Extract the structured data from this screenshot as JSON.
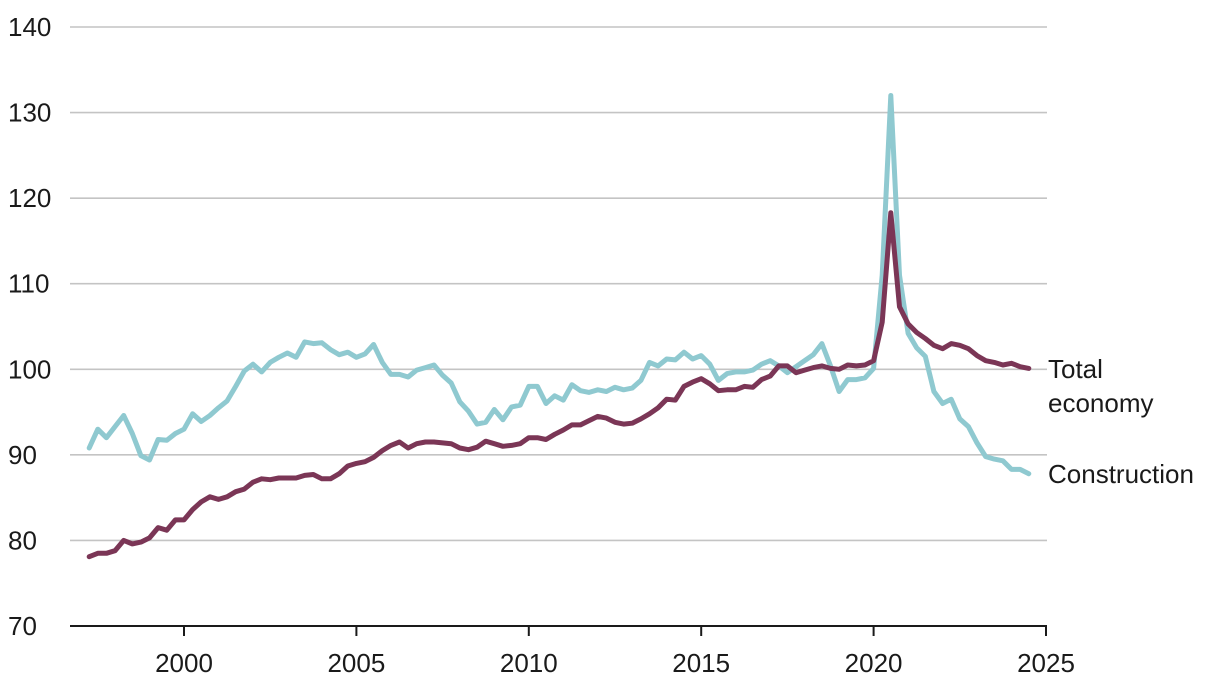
{
  "chart_data": {
    "type": "line",
    "title": "",
    "xlabel": "",
    "ylabel": "",
    "xlim": [
      1996.5,
      2025
    ],
    "ylim": [
      70,
      140
    ],
    "grid": true,
    "x_ticks": [
      "2000",
      "2005",
      "2010",
      "2015",
      "2020",
      "2025"
    ],
    "y_ticks": [
      "70",
      "80",
      "90",
      "100",
      "110",
      "120",
      "130",
      "140"
    ],
    "colors": {
      "Total economy": "#7b3656",
      "Construction": "#8fc9d0"
    },
    "series": [
      {
        "name": "Total economy",
        "label_lines": [
          "Total",
          "economy"
        ],
        "x": [
          1997.25,
          1997.5,
          1997.75,
          1998,
          1998.25,
          1998.5,
          1998.75,
          1999,
          1999.25,
          1999.5,
          1999.75,
          2000,
          2000.25,
          2000.5,
          2000.75,
          2001,
          2001.25,
          2001.5,
          2001.75,
          2002,
          2002.25,
          2002.5,
          2002.75,
          2003,
          2003.25,
          2003.5,
          2003.75,
          2004,
          2004.25,
          2004.5,
          2004.75,
          2005,
          2005.25,
          2005.5,
          2005.75,
          2006,
          2006.25,
          2006.5,
          2006.75,
          2007,
          2007.25,
          2007.5,
          2007.75,
          2008,
          2008.25,
          2008.5,
          2008.75,
          2009,
          2009.25,
          2009.5,
          2009.75,
          2010,
          2010.25,
          2010.5,
          2010.75,
          2011,
          2011.25,
          2011.5,
          2011.75,
          2012,
          2012.25,
          2012.5,
          2012.75,
          2013,
          2013.25,
          2013.5,
          2013.75,
          2014,
          2014.25,
          2014.5,
          2014.75,
          2015,
          2015.25,
          2015.5,
          2015.75,
          2016,
          2016.25,
          2016.5,
          2016.75,
          2017,
          2017.25,
          2017.5,
          2017.75,
          2018,
          2018.25,
          2018.5,
          2018.75,
          2019,
          2019.25,
          2019.5,
          2019.75,
          2020,
          2020.25,
          2020.5,
          2020.75,
          2021,
          2021.25,
          2021.5,
          2021.75,
          2022,
          2022.25,
          2022.5,
          2022.75,
          2023,
          2023.25,
          2023.5,
          2023.75,
          2024,
          2024.25,
          2024.5
        ],
        "values": [
          78.1,
          78.5,
          78.5,
          78.8,
          80.0,
          79.6,
          79.8,
          80.3,
          81.5,
          81.2,
          82.4,
          82.4,
          83.6,
          84.5,
          85.1,
          84.8,
          85.1,
          85.7,
          86.0,
          86.8,
          87.2,
          87.1,
          87.3,
          87.3,
          87.3,
          87.6,
          87.7,
          87.2,
          87.2,
          87.8,
          88.7,
          89.0,
          89.2,
          89.7,
          90.5,
          91.1,
          91.5,
          90.8,
          91.3,
          91.5,
          91.5,
          91.4,
          91.3,
          90.8,
          90.6,
          90.9,
          91.6,
          91.3,
          91.0,
          91.1,
          91.3,
          92.0,
          92.0,
          91.8,
          92.4,
          92.9,
          93.5,
          93.5,
          94.0,
          94.5,
          94.3,
          93.8,
          93.6,
          93.7,
          94.2,
          94.8,
          95.5,
          96.5,
          96.4,
          98.0,
          98.5,
          98.9,
          98.3,
          97.5,
          97.6,
          97.6,
          98.0,
          97.9,
          98.8,
          99.2,
          100.4,
          100.4,
          99.6,
          99.9,
          100.2,
          100.4,
          100.1,
          100.0,
          100.5,
          100.4,
          100.5,
          101.0,
          105.5,
          118.3,
          107.3,
          105.3,
          104.3,
          103.6,
          102.8,
          102.4,
          103.0,
          102.8,
          102.4,
          101.6,
          101.0,
          100.8,
          100.5,
          100.7,
          100.3,
          100.1
        ]
      },
      {
        "name": "Construction",
        "label_lines": [
          "Construction"
        ],
        "x": [
          1997.25,
          1997.5,
          1997.75,
          1998,
          1998.25,
          1998.5,
          1998.75,
          1999,
          1999.25,
          1999.5,
          1999.75,
          2000,
          2000.25,
          2000.5,
          2000.75,
          2001,
          2001.25,
          2001.5,
          2001.75,
          2002,
          2002.25,
          2002.5,
          2002.75,
          2003,
          2003.25,
          2003.5,
          2003.75,
          2004,
          2004.25,
          2004.5,
          2004.75,
          2005,
          2005.25,
          2005.5,
          2005.75,
          2006,
          2006.25,
          2006.5,
          2006.75,
          2007,
          2007.25,
          2007.5,
          2007.75,
          2008,
          2008.25,
          2008.5,
          2008.75,
          2009,
          2009.25,
          2009.5,
          2009.75,
          2010,
          2010.25,
          2010.5,
          2010.75,
          2011,
          2011.25,
          2011.5,
          2011.75,
          2012,
          2012.25,
          2012.5,
          2012.75,
          2013,
          2013.25,
          2013.5,
          2013.75,
          2014,
          2014.25,
          2014.5,
          2014.75,
          2015,
          2015.25,
          2015.5,
          2015.75,
          2016,
          2016.25,
          2016.5,
          2016.75,
          2017,
          2017.25,
          2017.5,
          2017.75,
          2018,
          2018.25,
          2018.5,
          2018.75,
          2019,
          2019.25,
          2019.5,
          2019.75,
          2020,
          2020.25,
          2020.5,
          2020.75,
          2021,
          2021.25,
          2021.5,
          2021.75,
          2022,
          2022.25,
          2022.5,
          2022.75,
          2023,
          2023.25,
          2023.5,
          2023.75,
          2024,
          2024.25,
          2024.5
        ],
        "values": [
          90.8,
          93.0,
          92.0,
          93.3,
          94.6,
          92.5,
          89.9,
          89.4,
          91.8,
          91.7,
          92.5,
          93.0,
          94.8,
          93.9,
          94.6,
          95.5,
          96.3,
          98.0,
          99.8,
          100.6,
          99.7,
          100.8,
          101.4,
          101.9,
          101.4,
          103.2,
          103.0,
          103.1,
          102.3,
          101.7,
          102.0,
          101.4,
          101.8,
          102.9,
          100.8,
          99.4,
          99.4,
          99.1,
          99.9,
          100.2,
          100.5,
          99.3,
          98.4,
          96.2,
          95.1,
          93.6,
          93.8,
          95.3,
          94.1,
          95.6,
          95.8,
          98.0,
          98.0,
          96.0,
          96.9,
          96.4,
          98.2,
          97.5,
          97.3,
          97.6,
          97.4,
          97.9,
          97.6,
          97.8,
          98.7,
          100.8,
          100.4,
          101.2,
          101.1,
          102.0,
          101.2,
          101.6,
          100.6,
          98.7,
          99.5,
          99.7,
          99.7,
          99.9,
          100.6,
          101.0,
          100.4,
          99.6,
          100.3,
          101.0,
          101.7,
          103.0,
          100.4,
          97.4,
          98.8,
          98.8,
          99.0,
          100.1,
          111.0,
          132.0,
          111.0,
          104.2,
          102.5,
          101.5,
          97.4,
          96.0,
          96.5,
          94.2,
          93.3,
          91.4,
          89.8,
          89.5,
          89.3,
          88.3,
          88.3,
          87.8
        ]
      }
    ]
  }
}
